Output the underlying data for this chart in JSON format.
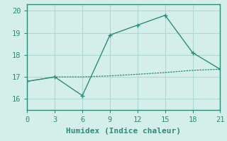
{
  "xlabel": "Humidex (Indice chaleur)",
  "ylabel": "",
  "line1_x": [
    0,
    3,
    6,
    9,
    12,
    15,
    18,
    21
  ],
  "line1_y": [
    16.8,
    17.0,
    16.15,
    18.9,
    19.35,
    19.8,
    18.1,
    17.35
  ],
  "line2_x": [
    0,
    3,
    6,
    9,
    12,
    15,
    18,
    21
  ],
  "line2_y": [
    16.8,
    17.0,
    17.0,
    17.05,
    17.12,
    17.2,
    17.3,
    17.35
  ],
  "line_color": "#2e8b7a",
  "bg_color": "#d4eeea",
  "grid_color": "#b0d8d2",
  "xlim": [
    0,
    21
  ],
  "ylim": [
    15.5,
    20.3
  ],
  "xticks": [
    0,
    3,
    6,
    9,
    12,
    15,
    18,
    21
  ],
  "yticks": [
    16,
    17,
    18,
    19,
    20
  ],
  "xlabel_fontsize": 8,
  "tick_fontsize": 7.5
}
